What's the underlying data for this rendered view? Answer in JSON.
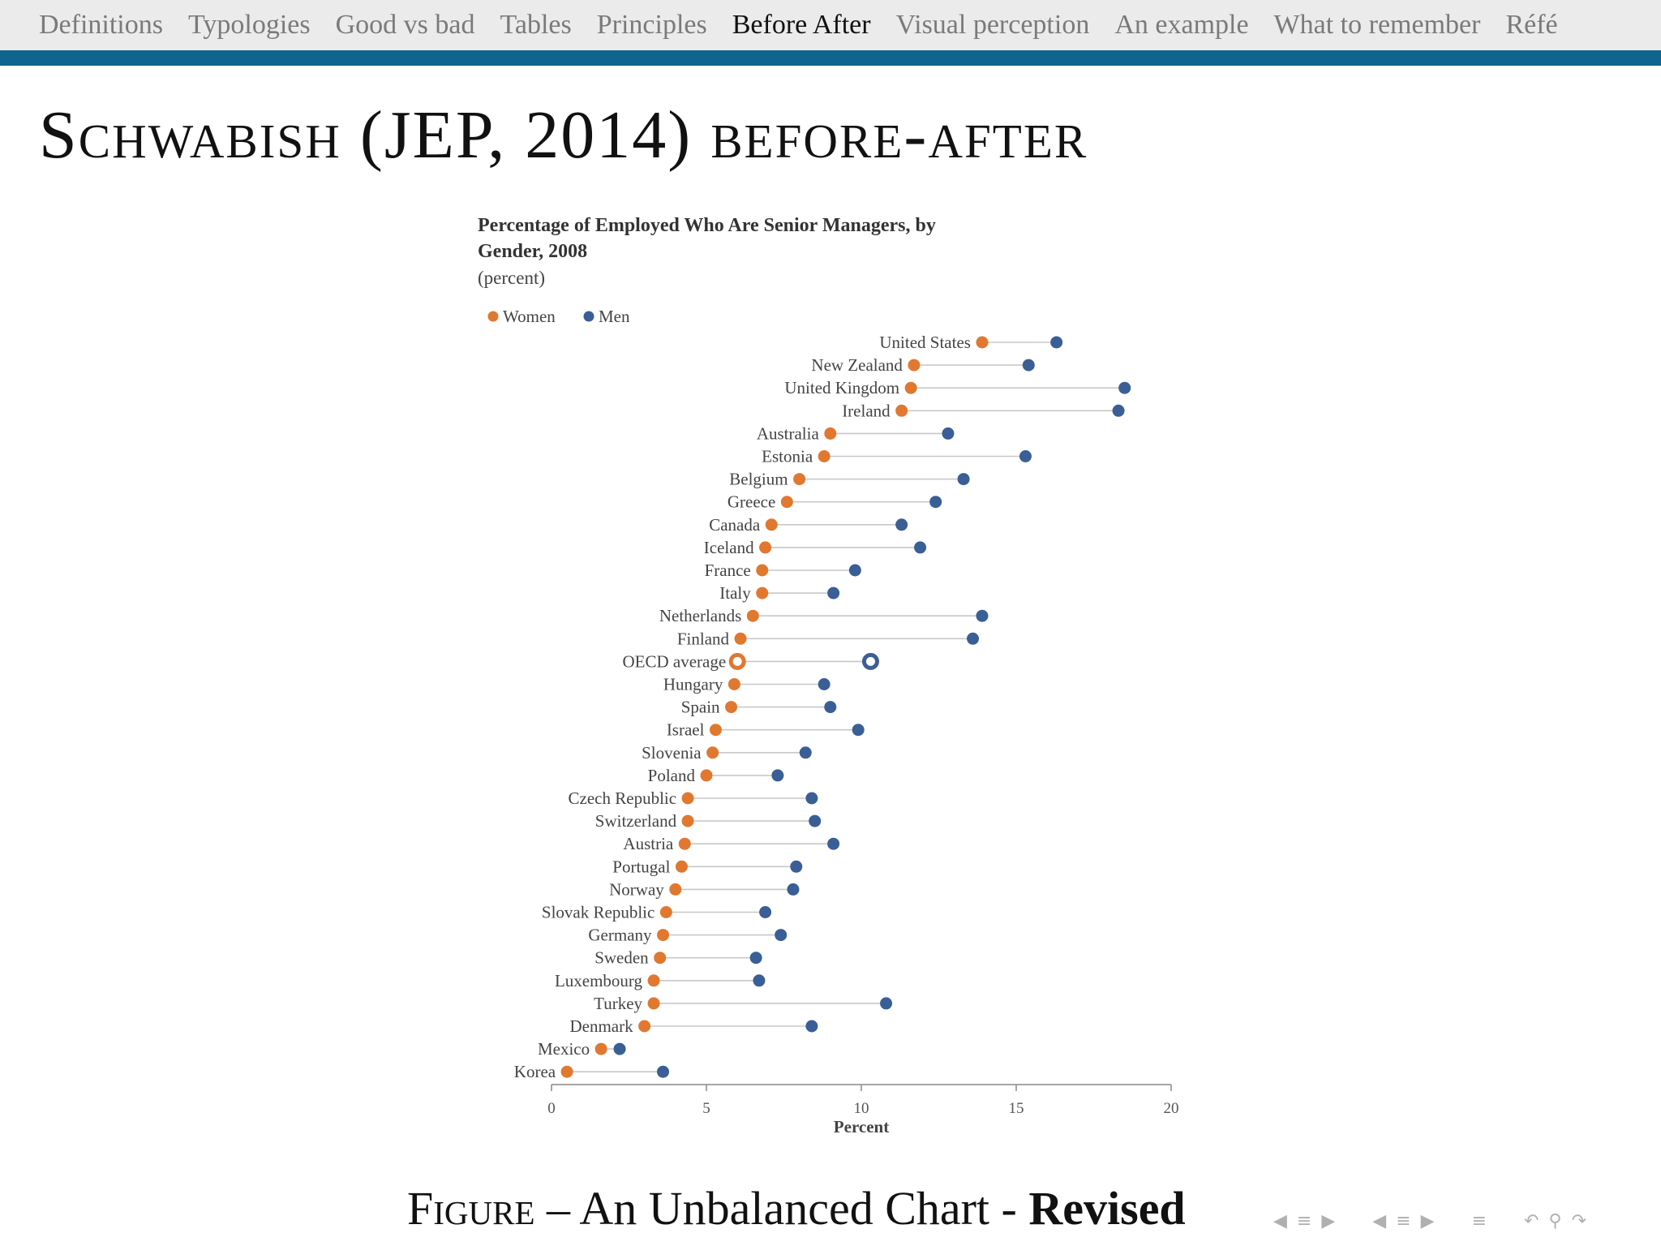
{
  "nav": {
    "items": [
      "Definitions",
      "Typologies",
      "Good vs bad",
      "Tables",
      "Principles",
      "Before After",
      "Visual perception",
      "An example",
      "What to remember",
      "Réfé"
    ],
    "active_index": 5,
    "bar_color": "#10658e"
  },
  "slide": {
    "title": "Schwabish (JEP, 2014) before-after"
  },
  "caption": {
    "figure": "Figure",
    "text": " – An Unbalanced Chart - ",
    "bold": "Revised"
  },
  "controls": {
    "icons": [
      "arrow-left-icon",
      "section-icon",
      "arrow-right-icon",
      "arrow-left-icon",
      "subsection-icon",
      "arrow-right-icon",
      "outline-icon",
      "undo-icon",
      "search-icon",
      "redo-icon"
    ]
  },
  "chart_data": {
    "type": "scatter",
    "subtype": "dot-plot",
    "title_lines": [
      "Percentage of Employed Who Are Senior Managers,  by",
      "Gender, 2008"
    ],
    "subtitle": "(percent)",
    "xlabel": "Percent",
    "xlim": [
      0,
      20
    ],
    "xticks": [
      0,
      5,
      10,
      15,
      20
    ],
    "legend_position": "top-left",
    "series": [
      {
        "name": "Women",
        "color": "#e07830"
      },
      {
        "name": "Men",
        "color": "#3a5e96"
      }
    ],
    "categories": [
      "United States",
      "New Zealand",
      "United Kingdom",
      "Ireland",
      "Australia",
      "Estonia",
      "Belgium",
      "Greece",
      "Canada",
      "Iceland",
      "France",
      "Italy",
      "Netherlands",
      "Finland",
      "OECD average",
      "Hungary",
      "Spain",
      "Israel",
      "Slovenia",
      "Poland",
      "Czech Republic",
      "Switzerland",
      "Austria",
      "Portugal",
      "Norway",
      "Slovak Republic",
      "Germany",
      "Sweden",
      "Luxembourg",
      "Turkey",
      "Denmark",
      "Mexico",
      "Korea"
    ],
    "women": [
      13.9,
      11.7,
      11.6,
      11.3,
      9.0,
      8.8,
      8.0,
      7.6,
      7.1,
      6.9,
      6.8,
      6.8,
      6.5,
      6.1,
      6.0,
      5.9,
      5.8,
      5.3,
      5.2,
      5.0,
      4.4,
      4.4,
      4.3,
      4.2,
      4.0,
      3.7,
      3.6,
      3.5,
      3.3,
      3.3,
      3.0,
      1.6,
      0.5
    ],
    "men": [
      16.3,
      15.4,
      18.5,
      18.3,
      12.8,
      15.3,
      13.3,
      12.4,
      11.3,
      11.9,
      9.8,
      9.1,
      13.9,
      13.6,
      10.3,
      8.8,
      9.0,
      9.9,
      8.2,
      7.3,
      8.4,
      8.5,
      9.1,
      7.9,
      7.8,
      6.9,
      7.4,
      6.6,
      6.7,
      10.8,
      8.4,
      2.2,
      3.6
    ],
    "highlight": "OECD average",
    "grid": false
  }
}
